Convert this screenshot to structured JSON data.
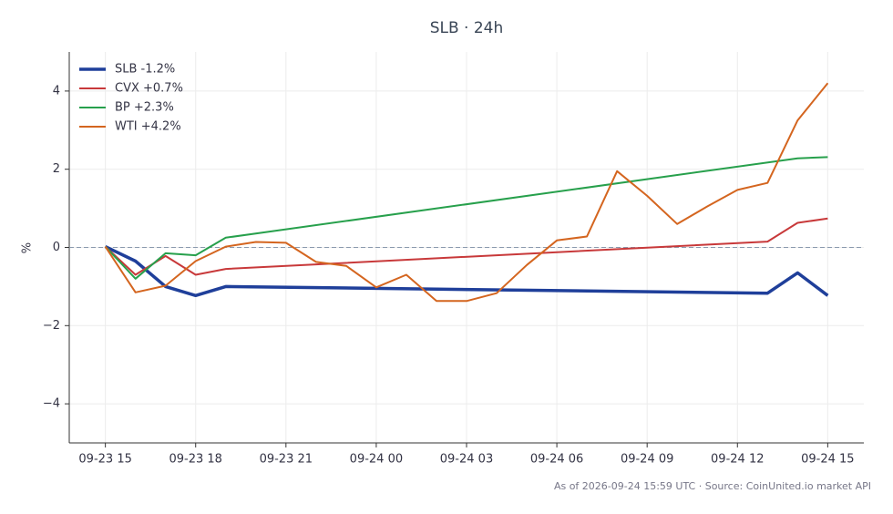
{
  "chart_data": {
    "type": "line",
    "title": "SLB · 24h",
    "ylabel": "%",
    "footer": "As of 2026-09-24 15:59 UTC · Source: CoinUnited.io market API",
    "series": [
      {
        "name": "SLB -1.2%",
        "color": "#1f3f9a",
        "width": 3.5,
        "x": [
          "09-23 15",
          "09-23 16",
          "09-23 17",
          "09-23 18",
          "09-23 19",
          "09-24 13",
          "09-24 14",
          "09-24 15"
        ],
        "values": [
          0.02,
          -0.35,
          -1.0,
          -1.23,
          -1.0,
          -1.17,
          -0.65,
          -1.23
        ]
      },
      {
        "name": "CVX +0.7%",
        "color": "#c8393a",
        "width": 2,
        "x": [
          "09-23 15",
          "09-23 16",
          "09-23 17",
          "09-23 18",
          "09-23 19",
          "09-24 13",
          "09-24 14",
          "09-24 15"
        ],
        "values": [
          0.02,
          -0.7,
          -0.22,
          -0.7,
          -0.55,
          0.15,
          0.63,
          0.74
        ]
      },
      {
        "name": "BP +2.3%",
        "color": "#27a04c",
        "width": 2,
        "x": [
          "09-23 15",
          "09-23 16",
          "09-23 17",
          "09-23 18",
          "09-23 19",
          "09-24 14",
          "09-24 15"
        ],
        "values": [
          0.02,
          -0.8,
          -0.15,
          -0.2,
          0.25,
          2.28,
          2.31
        ]
      },
      {
        "name": "WTI +4.2%",
        "color": "#d4651f",
        "width": 2,
        "x": [
          "09-23 15",
          "09-23 16",
          "09-23 17",
          "09-23 18",
          "09-23 19",
          "09-23 20",
          "09-23 21",
          "09-23 22",
          "09-23 23",
          "09-24 00",
          "09-24 01",
          "09-24 02",
          "09-24 03",
          "09-24 04",
          "09-24 05",
          "09-24 06",
          "09-24 07",
          "09-24 08",
          "09-24 09",
          "09-24 10",
          "09-24 11",
          "09-24 12",
          "09-24 13",
          "09-24 14",
          "09-24 15"
        ],
        "values": [
          0.02,
          -1.15,
          -0.98,
          -0.35,
          0.02,
          0.14,
          0.12,
          -0.37,
          -0.47,
          -1.02,
          -0.7,
          -1.37,
          -1.37,
          -1.17,
          -0.45,
          0.18,
          0.28,
          1.95,
          1.32,
          0.6,
          1.05,
          1.47,
          1.65,
          3.25,
          4.2
        ]
      }
    ],
    "xticks": [
      "09-23 15",
      "09-23 18",
      "09-23 21",
      "09-24 00",
      "09-24 03",
      "09-24 06",
      "09-24 09",
      "09-24 12",
      "09-24 15"
    ],
    "ylim": [
      -5,
      5
    ],
    "yticks": [
      {
        "value": -4,
        "label": "−4"
      },
      {
        "value": -2,
        "label": "−2"
      },
      0,
      2,
      4
    ],
    "reference_line": 0,
    "grid": true,
    "legend": "upper left"
  }
}
